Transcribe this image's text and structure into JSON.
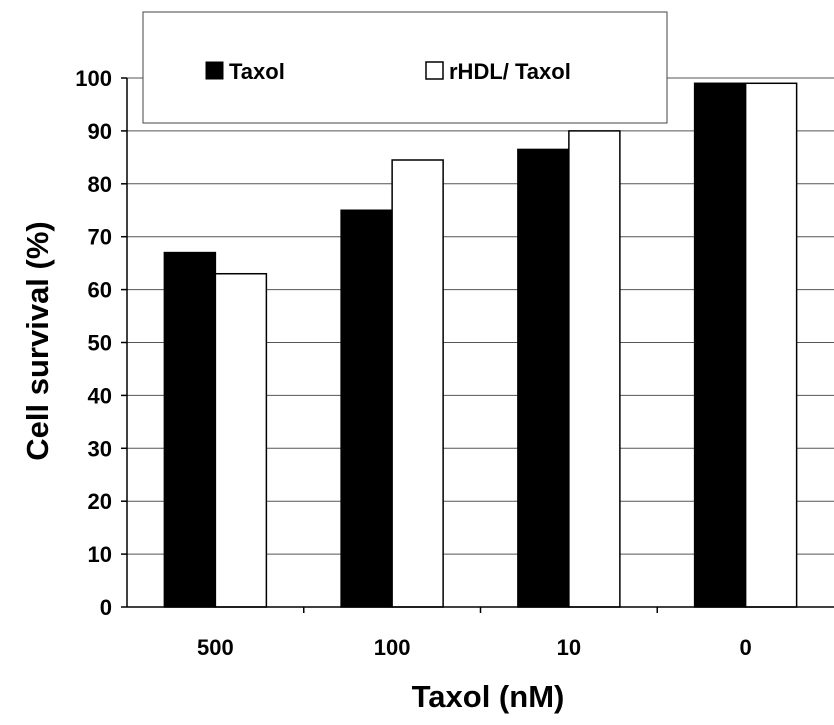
{
  "chart_data": {
    "type": "bar",
    "title": "",
    "xlabel": "Taxol (nM)",
    "ylabel": "Cell survival (%)",
    "categories": [
      "500",
      "100",
      "10",
      "0"
    ],
    "series": [
      {
        "name": "Taxol",
        "color": "#000000",
        "values": [
          67,
          75,
          86.5,
          99
        ]
      },
      {
        "name": "rHDL/ Taxol",
        "color": "#ffffff",
        "values": [
          63,
          84.5,
          90,
          99
        ]
      }
    ],
    "ylim": [
      0,
      100
    ],
    "yticks": [
      0,
      10,
      20,
      30,
      40,
      50,
      60,
      70,
      80,
      90,
      100
    ],
    "grid": true,
    "legend_position": "top-left"
  }
}
